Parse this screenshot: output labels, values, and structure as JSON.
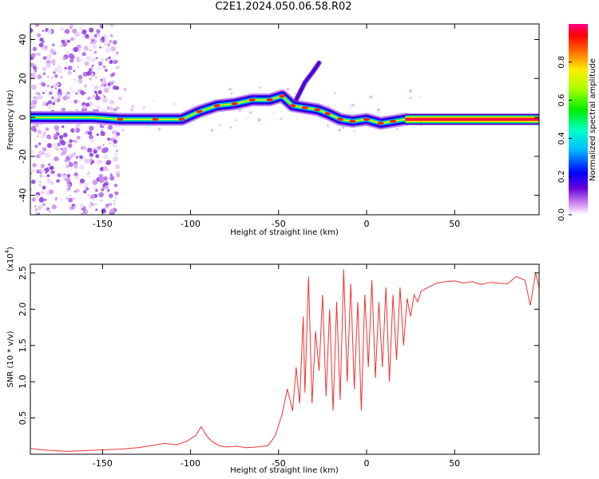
{
  "title": "C2E1.2024.050.06.58.R02",
  "chart_data": [
    {
      "type": "heatmap",
      "title": "C2E1.2024.050.06.58.R02",
      "xlabel": "Height of straight line (km)",
      "ylabel": "Frequency (Hz)",
      "xlim": [
        -191,
        98
      ],
      "ylim": [
        -50,
        48
      ],
      "x_ticks": [
        -150,
        -100,
        -50,
        0,
        50
      ],
      "y_ticks": [
        -40,
        -20,
        0,
        20,
        40
      ],
      "colorbar": {
        "label": "Normalized spectral amplitude",
        "range": [
          0,
          1
        ],
        "ticks": [
          "0.0",
          "0.2",
          "0.4",
          "0.6",
          "0.8"
        ]
      },
      "ridge": [
        [
          -191,
          0
        ],
        [
          -175,
          0
        ],
        [
          -155,
          0
        ],
        [
          -140,
          -1
        ],
        [
          -120,
          -1
        ],
        [
          -105,
          -1
        ],
        [
          -95,
          3
        ],
        [
          -85,
          6
        ],
        [
          -75,
          7
        ],
        [
          -65,
          9
        ],
        [
          -55,
          9
        ],
        [
          -48,
          11
        ],
        [
          -42,
          6
        ],
        [
          -35,
          5
        ],
        [
          -28,
          4
        ],
        [
          -22,
          2
        ],
        [
          -15,
          -1
        ],
        [
          -8,
          -2
        ],
        [
          0,
          -1
        ],
        [
          8,
          -3
        ],
        [
          15,
          -2
        ],
        [
          22,
          -1
        ],
        [
          98,
          -1
        ]
      ],
      "saturated_band_start_km": 22,
      "spur": [
        [
          -40,
          9
        ],
        [
          -35,
          18
        ],
        [
          -30,
          24
        ],
        [
          -27,
          28
        ]
      ],
      "notes": "Broadband scattered noise between -191 and -142 km"
    },
    {
      "type": "line",
      "xlabel": "Height of straight line (km)",
      "ylabel": "SNR (10 * v/v)",
      "y_scale_label": "(x10",
      "y_scale_exp": "4",
      "xlim": [
        -191,
        98
      ],
      "ylim": [
        0,
        2.62
      ],
      "x_ticks": [
        -150,
        -100,
        -50,
        0,
        50
      ],
      "y_ticks": [
        0.5,
        1.0,
        1.5,
        2.0,
        2.5
      ],
      "y_tick_labels": [
        "0.5",
        "1.0",
        "1.5",
        "2.0",
        "2.5"
      ],
      "series": [
        {
          "name": "SNR",
          "color": "#ee3333",
          "x": [
            -191,
            -185,
            -170,
            -160,
            -150,
            -140,
            -130,
            -122,
            -115,
            -108,
            -102,
            -97,
            -94,
            -91,
            -88,
            -84,
            -80,
            -74,
            -68,
            -62,
            -56,
            -52,
            -48,
            -45,
            -42,
            -40,
            -38,
            -36,
            -35,
            -33,
            -31,
            -29,
            -27,
            -25,
            -23,
            -21,
            -19,
            -17,
            -15,
            -13,
            -11,
            -9,
            -7,
            -5,
            -3,
            -1,
            1,
            3,
            5,
            7,
            9,
            11,
            13,
            15,
            17,
            19,
            21,
            23,
            25,
            27,
            29,
            31,
            35,
            40,
            45,
            50,
            55,
            60,
            65,
            70,
            75,
            80,
            85,
            90,
            93,
            96,
            98
          ],
          "values": [
            0.08,
            0.06,
            0.04,
            0.05,
            0.06,
            0.07,
            0.09,
            0.12,
            0.15,
            0.13,
            0.18,
            0.26,
            0.38,
            0.26,
            0.18,
            0.12,
            0.1,
            0.11,
            0.09,
            0.1,
            0.12,
            0.25,
            0.55,
            0.9,
            0.6,
            1.2,
            0.7,
            1.9,
            0.85,
            2.45,
            0.7,
            1.7,
            1.15,
            2.2,
            0.8,
            2.0,
            0.6,
            2.1,
            0.75,
            2.55,
            1.0,
            2.35,
            0.9,
            2.1,
            0.6,
            2.2,
            1.2,
            2.4,
            1.05,
            2.1,
            1.2,
            2.3,
            1.0,
            2.2,
            1.3,
            2.3,
            1.5,
            2.15,
            1.9,
            2.2,
            2.1,
            2.25,
            2.3,
            2.36,
            2.38,
            2.39,
            2.36,
            2.38,
            2.34,
            2.37,
            2.36,
            2.35,
            2.45,
            2.4,
            2.05,
            2.5,
            2.3
          ]
        }
      ]
    }
  ]
}
